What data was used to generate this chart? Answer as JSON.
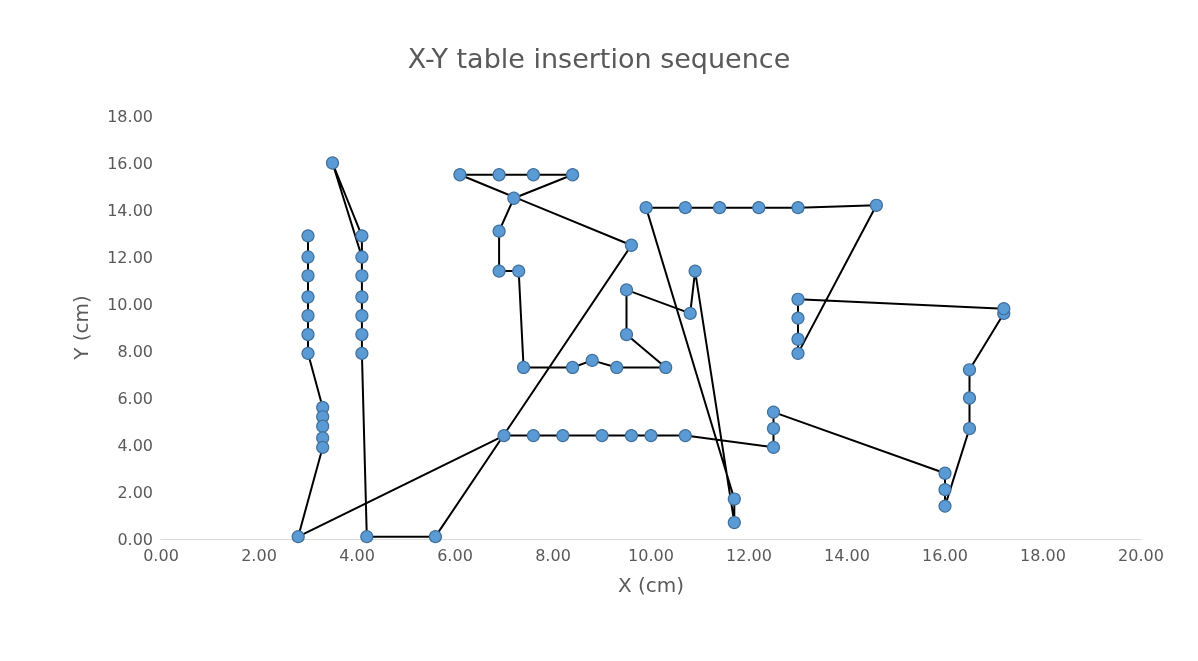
{
  "chart_data": {
    "type": "line",
    "title": "X-Y table insertion sequence",
    "xlabel": "X (cm)",
    "ylabel": "Y (cm)",
    "xlim": [
      0,
      20
    ],
    "xticks": [
      {
        "value": 0,
        "label": "0.00"
      },
      {
        "value": 2,
        "label": "2.00"
      },
      {
        "value": 4,
        "label": "4.00"
      },
      {
        "value": 6,
        "label": "6.00"
      },
      {
        "value": 8,
        "label": "8.00"
      },
      {
        "value": 10,
        "label": "10.00"
      },
      {
        "value": 12,
        "label": "12.00"
      },
      {
        "value": 14,
        "label": "14.00"
      },
      {
        "value": 16,
        "label": "16.00"
      },
      {
        "value": 18,
        "label": "18.00"
      },
      {
        "value": 20,
        "label": "20.00"
      }
    ],
    "ylim": [
      0,
      18
    ],
    "yticks": [
      {
        "value": 0,
        "label": "0.00"
      },
      {
        "value": 2,
        "label": "2.00"
      },
      {
        "value": 4,
        "label": "4.00"
      },
      {
        "value": 6,
        "label": "6.00"
      },
      {
        "value": 8,
        "label": "8.00"
      },
      {
        "value": 10,
        "label": "10.00"
      },
      {
        "value": 12,
        "label": "12.00"
      },
      {
        "value": 14,
        "label": "14.00"
      },
      {
        "value": 16,
        "label": "16.00"
      },
      {
        "value": 18,
        "label": "18.00"
      }
    ],
    "grid": false,
    "marker": "circle",
    "line_style": "solid",
    "series": [
      {
        "color": "#000000",
        "x": [
          3.0,
          3.0,
          3.0,
          3.0,
          3.0,
          3.0,
          3.0,
          3.3,
          3.3,
          3.3,
          3.3,
          3.3,
          2.8,
          7.0,
          7.6,
          8.2,
          9.0,
          9.6,
          10.0,
          10.7,
          12.5,
          12.5,
          12.5,
          16.0,
          16.0,
          16.0,
          16.5,
          16.5,
          16.5,
          17.2,
          17.2,
          13.0,
          13.0,
          13.0,
          13.0,
          14.6,
          13.0,
          12.2,
          11.4,
          10.7,
          9.9,
          11.7,
          11.7,
          10.9,
          10.8,
          9.5,
          9.5,
          10.3,
          9.3,
          8.8,
          8.4,
          7.4,
          7.3,
          6.9,
          6.9,
          7.2,
          8.4,
          7.6,
          6.9,
          6.1,
          9.6,
          5.6,
          4.2,
          4.1,
          4.1,
          4.1,
          4.1,
          4.1,
          4.1,
          3.5,
          4.1
        ],
        "values": [
          12.9,
          12.0,
          11.2,
          10.3,
          9.5,
          8.7,
          7.9,
          5.6,
          5.2,
          4.8,
          4.3,
          3.9,
          0.1,
          4.4,
          4.4,
          4.4,
          4.4,
          4.4,
          4.4,
          4.4,
          3.9,
          4.7,
          5.4,
          2.8,
          2.1,
          1.4,
          4.7,
          6.0,
          7.2,
          9.6,
          9.8,
          10.2,
          9.4,
          8.5,
          7.9,
          14.2,
          14.1,
          14.1,
          14.1,
          14.1,
          14.1,
          1.7,
          0.7,
          11.4,
          9.6,
          10.6,
          8.7,
          7.3,
          7.3,
          7.6,
          7.3,
          7.3,
          11.4,
          11.4,
          13.1,
          14.5,
          15.5,
          15.5,
          15.5,
          15.5,
          12.5,
          0.1,
          0.1,
          7.9,
          8.7,
          9.5,
          10.3,
          11.2,
          12.9,
          16.0,
          12.0
        ],
        "colors": [
          "#5b9bd5",
          "#5b9bd5",
          "#5b9bd5",
          "#5b9bd5",
          "#5b9bd5",
          "#5b9bd5",
          "#5b9bd5",
          "#5b9bd5",
          "#5b9bd5",
          "#5b9bd5",
          "#5b9bd5",
          "#5b9bd5",
          "#5b9bd5",
          "#5b9bd5",
          "#5b9bd5",
          "#5b9bd5",
          "#5b9bd5",
          "#5b9bd5",
          "#5b9bd5",
          "#5b9bd5",
          "#5b9bd5",
          "#5b9bd5",
          "#5b9bd5",
          "#5b9bd5",
          "#5b9bd5",
          "#5b9bd5",
          "#5b9bd5",
          "#5b9bd5",
          "#5b9bd5",
          "#5b9bd5",
          "#5b9bd5",
          "#5b9bd5",
          "#5b9bd5",
          "#5b9bd5",
          "#5b9bd5",
          "#5b9bd5",
          "#5b9bd5",
          "#5b9bd5",
          "#5b9bd5",
          "#5b9bd5",
          "#5b9bd5",
          "#5b9bd5",
          "#5b9bd5",
          "#5b9bd5",
          "#5b9bd5",
          "#5b9bd5",
          "#5b9bd5",
          "#5b9bd5",
          "#5b9bd5",
          "#5b9bd5",
          "#5b9bd5",
          "#5b9bd5",
          "#5b9bd5",
          "#5b9bd5",
          "#5b9bd5",
          "#5b9bd5",
          "#5b9bd5",
          "#5b9bd5",
          "#5b9bd5",
          "#5b9bd5",
          "#5b9bd5",
          "#5b9bd5",
          "#5b9bd5",
          "#5b9bd5",
          "#5b9bd5",
          "#5b9bd5",
          "#5b9bd5",
          "#5b9bd5",
          "#5b9bd5",
          "#5b9bd5",
          "#5b9bd5"
        ]
      }
    ]
  }
}
